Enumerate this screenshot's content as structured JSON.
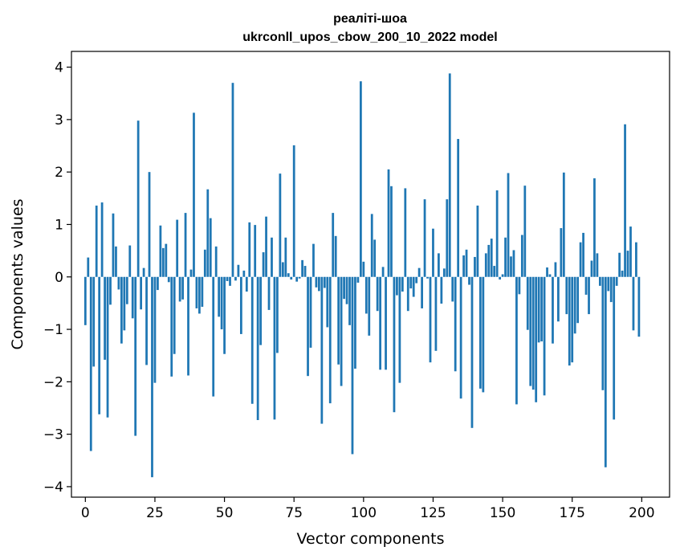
{
  "chart_data": {
    "type": "bar",
    "title": "реаліті-шоа",
    "subtitle": "ukrconll_upos_cbow_200_10_2022 model",
    "xlabel": "Vector components",
    "ylabel": "Components values",
    "xlim": [
      -5,
      210
    ],
    "ylim": [
      -4.2,
      4.3
    ],
    "xticks": [
      0,
      25,
      50,
      75,
      100,
      125,
      150,
      175,
      200
    ],
    "yticks": [
      -4,
      -3,
      -2,
      -1,
      0,
      1,
      2,
      3,
      4
    ],
    "xtick_labels": [
      "0",
      "25",
      "50",
      "75",
      "100",
      "125",
      "150",
      "175",
      "200"
    ],
    "ytick_labels": [
      "−4",
      "−3",
      "−2",
      "−1",
      "0",
      "1",
      "2",
      "3",
      "4"
    ],
    "grid": false,
    "legend": "none",
    "bar_color": "#1f77b4",
    "values": [
      -0.92,
      0.37,
      -3.32,
      -1.71,
      1.36,
      -2.62,
      1.42,
      -1.58,
      -2.68,
      -0.53,
      1.21,
      0.58,
      -0.24,
      -1.27,
      -1.02,
      -0.52,
      0.6,
      -0.79,
      -3.03,
      2.98,
      -0.62,
      0.17,
      -1.68,
      2.0,
      -3.82,
      -2.02,
      -0.25,
      0.98,
      0.55,
      0.63,
      -0.1,
      -1.9,
      -1.47,
      1.09,
      -0.47,
      -0.43,
      1.22,
      -1.88,
      0.14,
      3.13,
      -0.6,
      -0.7,
      -0.57,
      0.52,
      1.67,
      1.12,
      -2.28,
      0.58,
      -0.76,
      -1.0,
      -1.47,
      -0.08,
      -0.17,
      3.7,
      -0.07,
      0.23,
      -1.09,
      0.12,
      -0.28,
      1.04,
      -2.42,
      0.99,
      -2.73,
      -1.3,
      0.47,
      1.15,
      -0.63,
      0.75,
      -2.72,
      -1.45,
      1.97,
      0.28,
      0.75,
      0.07,
      -0.05,
      2.51,
      -0.09,
      -0.03,
      0.32,
      0.21,
      -1.89,
      -1.35,
      0.63,
      -0.2,
      -0.27,
      -2.8,
      -0.21,
      -0.96,
      -2.41,
      1.22,
      0.78,
      -1.67,
      -2.08,
      -0.42,
      -0.52,
      -0.92,
      -3.38,
      -1.75,
      -0.11,
      3.73,
      0.29,
      -0.7,
      -1.12,
      1.2,
      0.71,
      -0.65,
      -1.77,
      0.19,
      -1.77,
      2.05,
      1.73,
      -2.58,
      -0.35,
      -2.02,
      -0.28,
      1.69,
      -0.65,
      -0.22,
      -0.38,
      -0.12,
      0.17,
      -0.6,
      1.48,
      -0.03,
      -1.63,
      0.92,
      -1.41,
      0.45,
      -0.51,
      0.16,
      1.48,
      3.88,
      -0.47,
      -1.8,
      2.63,
      -2.32,
      0.41,
      0.52,
      -0.15,
      -2.88,
      0.38,
      1.36,
      -2.13,
      -2.2,
      0.45,
      0.61,
      0.73,
      0.21,
      1.65,
      -0.05,
      0.05,
      0.75,
      1.98,
      0.39,
      0.51,
      -2.43,
      -0.33,
      0.8,
      1.74,
      -1.01,
      -2.08,
      -2.15,
      -2.39,
      -1.25,
      -1.23,
      -2.26,
      0.18,
      0.05,
      -1.27,
      0.28,
      -0.85,
      0.93,
      1.99,
      -0.71,
      -1.69,
      -1.63,
      -1.08,
      -0.88,
      0.66,
      0.84,
      -0.34,
      -0.71,
      0.31,
      1.88,
      0.45,
      -0.17,
      -2.16,
      -3.63,
      -0.27,
      -0.48,
      -2.72,
      -0.17,
      0.46,
      0.12,
      2.91,
      0.5,
      0.96,
      -1.02,
      0.66,
      -1.14
    ]
  }
}
